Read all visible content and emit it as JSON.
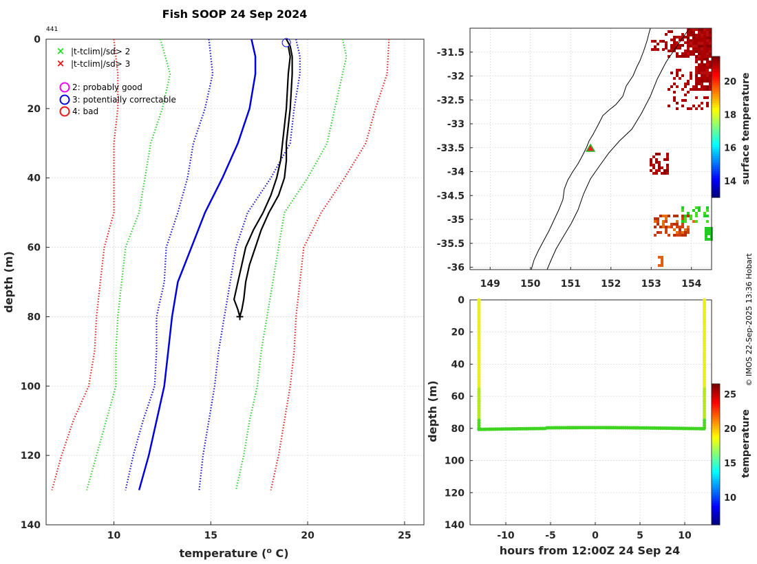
{
  "chart_data": [
    {
      "type": "line",
      "title": "Fish SOOP 24 Sep 2024",
      "station_label": "441",
      "xlabel": "temperature (",
      "xlabel_sup": "o",
      "xlabel_tail": " C)",
      "ylabel": "depth (m)",
      "xlim": [
        6.5,
        26
      ],
      "ylim": [
        0,
        140
      ],
      "xticks": [
        "10",
        "15",
        "20",
        "25"
      ],
      "yticks": [
        "0",
        "20",
        "40",
        "60",
        "80",
        "100",
        "120",
        "140"
      ],
      "legend": [
        {
          "marker": "x",
          "color": "#22dd22",
          "label": "|t-tclim|/sd> 2"
        },
        {
          "marker": "x",
          "color": "#ee1111",
          "label": "|t-tclim|/sd> 3"
        },
        {
          "marker": "o",
          "color": "#ee00ee",
          "label": "2: probably good"
        },
        {
          "marker": "o",
          "color": "#0000ee",
          "label": "3: potentially correctable"
        },
        {
          "marker": "o",
          "color": "#ee1111",
          "label": "4: bad"
        }
      ],
      "series": [
        {
          "name": "clim-3sd-low",
          "color": "#dd2222",
          "style": "dotted",
          "depth": [
            0,
            10,
            20,
            30,
            40,
            50,
            60,
            70,
            80,
            90,
            100,
            110,
            120,
            130
          ],
          "temp": [
            10.0,
            10.2,
            10.2,
            10.0,
            10.0,
            10.0,
            9.5,
            9.3,
            9.1,
            9.0,
            8.7,
            7.9,
            7.3,
            6.8
          ]
        },
        {
          "name": "clim-2sd-low",
          "color": "#33cc33",
          "style": "dotted",
          "depth": [
            0,
            10,
            20,
            30,
            40,
            50,
            60,
            70,
            80,
            90,
            100,
            110,
            120,
            130
          ],
          "temp": [
            12.4,
            12.9,
            12.5,
            11.9,
            11.6,
            11.3,
            10.6,
            10.4,
            10.2,
            10.1,
            10.1,
            9.6,
            9.1,
            8.6
          ]
        },
        {
          "name": "clim-1sd-low",
          "color": "#1111cc",
          "style": "dotted",
          "depth": [
            0,
            10,
            20,
            30,
            40,
            50,
            60,
            70,
            80,
            90,
            100,
            110,
            120,
            130
          ],
          "temp": [
            14.9,
            15.1,
            14.7,
            14.1,
            13.8,
            13.3,
            12.7,
            12.6,
            12.2,
            12.2,
            12.1,
            11.5,
            11.0,
            10.6
          ]
        },
        {
          "name": "clim-mean",
          "color": "#0000dd",
          "style": "solid",
          "depth": [
            0,
            5,
            10,
            20,
            30,
            40,
            50,
            60,
            70,
            80,
            90,
            100,
            110,
            120,
            130
          ],
          "temp": [
            17.1,
            17.3,
            17.3,
            17.0,
            16.4,
            15.6,
            14.7,
            14.0,
            13.3,
            13.0,
            12.8,
            12.6,
            12.2,
            11.8,
            11.3
          ]
        },
        {
          "name": "clim-1sd-high",
          "color": "#1111cc",
          "style": "dotted",
          "depth": [
            0,
            5,
            10,
            20,
            30,
            40,
            50,
            60,
            70,
            80,
            90,
            100,
            110,
            120,
            130
          ],
          "temp": [
            19.4,
            19.6,
            19.6,
            19.3,
            19.1,
            18.1,
            16.9,
            16.3,
            16.0,
            15.7,
            15.4,
            15.2,
            14.9,
            14.6,
            14.4
          ]
        },
        {
          "name": "clim-2sd-high",
          "color": "#33cc33",
          "style": "dotted",
          "depth": [
            0,
            5,
            10,
            20,
            30,
            40,
            50,
            60,
            70,
            80,
            90,
            100,
            110,
            120,
            130
          ],
          "temp": [
            21.8,
            22.0,
            21.8,
            21.4,
            21.0,
            20.0,
            18.8,
            18.5,
            18.2,
            17.9,
            17.6,
            17.4,
            17.0,
            16.7,
            16.3
          ]
        },
        {
          "name": "clim-3sd-high",
          "color": "#dd2222",
          "style": "dotted",
          "depth": [
            0,
            10,
            20,
            30,
            40,
            50,
            60,
            70,
            80,
            90,
            100,
            110,
            120,
            130
          ],
          "temp": [
            24.2,
            24.1,
            23.5,
            23.0,
            21.9,
            20.7,
            19.8,
            19.6,
            19.4,
            19.3,
            19.1,
            18.8,
            18.5,
            18.1
          ]
        },
        {
          "name": "xbt-profile",
          "color": "#000000",
          "style": "solid",
          "depth": [
            0,
            2,
            5,
            10,
            20,
            25,
            30,
            35,
            40,
            45,
            50,
            55,
            60,
            65,
            70,
            75,
            78,
            80,
            78,
            75,
            70,
            65,
            60,
            55,
            50,
            45,
            40,
            35,
            30,
            25,
            20,
            10,
            5,
            2
          ],
          "temp": [
            18.9,
            19.1,
            19.2,
            19.2,
            19.1,
            19.0,
            18.9,
            18.9,
            18.8,
            18.5,
            18.0,
            17.6,
            17.3,
            17.0,
            16.8,
            16.7,
            16.6,
            16.5,
            16.4,
            16.2,
            16.4,
            16.6,
            16.8,
            17.2,
            17.7,
            18.1,
            18.4,
            18.6,
            18.7,
            18.8,
            18.9,
            19.0,
            19.1,
            19.0
          ]
        }
      ],
      "qc_marker": {
        "temp": 18.9,
        "depth": 1,
        "color": "#0000ee"
      }
    },
    {
      "type": "heatmap",
      "title": "",
      "xticks": [
        "149",
        "150",
        "151",
        "152",
        "153",
        "154"
      ],
      "yticks": [
        "-31.5",
        "-32",
        "-32.5",
        "-33",
        "-33.5",
        "-34",
        "-34.5",
        "-35",
        "-35.5",
        "-36"
      ],
      "xlim": [
        148.5,
        154.5
      ],
      "ylim": [
        -36.05,
        -31.0
      ],
      "colorbar_label": "surface temperature",
      "colorbar_ticks": [
        "14",
        "16",
        "18",
        "20"
      ],
      "colorbar_range": [
        13,
        21.5
      ],
      "marker": {
        "lon": 151.55,
        "lat": -33.55
      }
    },
    {
      "type": "scatter",
      "xlabel": "hours from 12:00Z 24 Sep 24",
      "ylabel": "depth (m)",
      "xlim": [
        -14,
        13
      ],
      "ylim": [
        0,
        140
      ],
      "xticks": [
        "-10",
        "-5",
        "0",
        "5",
        "10"
      ],
      "yticks": [
        "0",
        "20",
        "40",
        "60",
        "80",
        "100",
        "120",
        "140"
      ],
      "colorbar_label": "temperature",
      "colorbar_ticks": [
        "10",
        "15",
        "20",
        "25"
      ],
      "colorbar_range": [
        6,
        26.5
      ],
      "casts": [
        {
          "hours": -13.0,
          "depth_max": 80
        },
        {
          "hours": 12.2,
          "depth_max": 80
        }
      ]
    }
  ],
  "credit": "© IMOS 22-Sep-2025 13:36 Hobart"
}
